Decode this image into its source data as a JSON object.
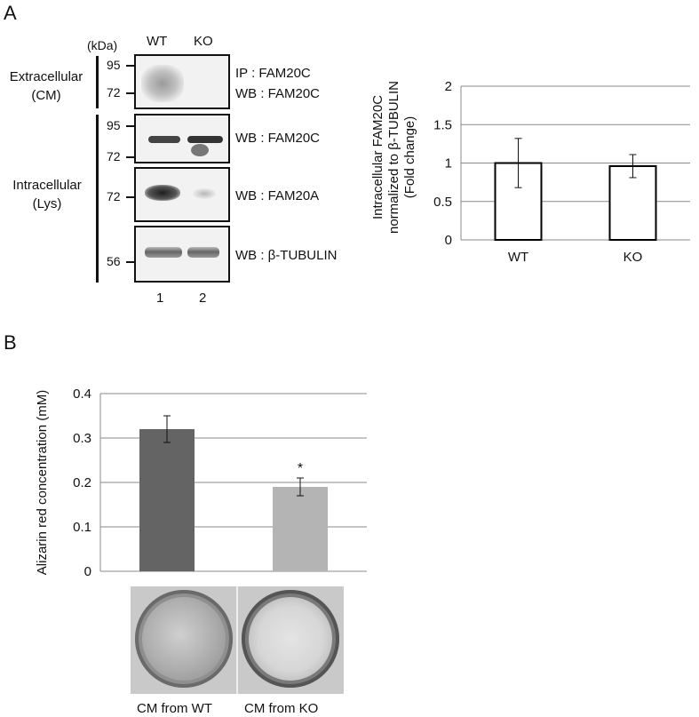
{
  "panel_a": {
    "letter": "A",
    "blot": {
      "kda_label": "(kDa)",
      "lane_headers": [
        "WT",
        "KO"
      ],
      "lane_numbers": [
        "1",
        "2"
      ],
      "group_extracellular": [
        "Extracellular",
        "(CM)"
      ],
      "group_intracellular": [
        "Intracellular",
        "(Lys)"
      ],
      "markers": {
        "blot1": [
          "95",
          "72"
        ],
        "blot2": [
          "95",
          "72"
        ],
        "blot3": [
          "72"
        ],
        "blot4": [
          "56"
        ]
      },
      "labels": {
        "blot1": [
          "IP : FAM20C",
          "WB : FAM20C"
        ],
        "blot2": "WB : FAM20C",
        "blot3": "WB : FAM20A",
        "blot4": "WB : β-TUBULIN"
      }
    }
  },
  "panel_b": {
    "letter": "B",
    "plate_labels": [
      "CM from WT",
      "CM from KO"
    ]
  },
  "chart_data": [
    {
      "type": "bar",
      "categories": [
        "WT",
        "KO"
      ],
      "values": [
        1.0,
        0.96
      ],
      "errors": [
        0.32,
        0.15
      ],
      "ylabel": [
        "Intracellular FAM20C",
        "normalized to β-TUBULIN",
        "(Fold change)"
      ],
      "ylim": [
        0,
        2
      ],
      "yticks": [
        "0",
        "0.5",
        "1",
        "1.5",
        "2"
      ],
      "grid": true,
      "bar_fill": "#ffffff",
      "bar_stroke": "#000000"
    },
    {
      "type": "bar",
      "categories": [
        "",
        ""
      ],
      "values": [
        0.32,
        0.19
      ],
      "errors": [
        0.03,
        0.02
      ],
      "annotations": [
        "",
        "*"
      ],
      "ylabel": "Alizarin red concentration (mM)",
      "ylim": [
        0,
        0.4
      ],
      "yticks": [
        "0",
        "0.1",
        "0.2",
        "0.3",
        "0.4"
      ],
      "grid": true,
      "bar_colors": [
        "#646464",
        "#b4b4b4"
      ]
    }
  ]
}
